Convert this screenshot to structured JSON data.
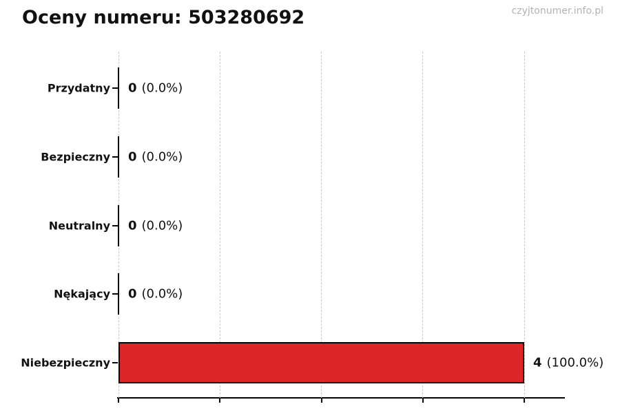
{
  "page": {
    "watermark": "czyjtonumer.info.pl"
  },
  "chart_data": {
    "type": "bar",
    "orientation": "horizontal",
    "title": "Oceny numeru: 503280692",
    "categories": [
      "Przydatny",
      "Bezpieczny",
      "Neutralny",
      "Nękający",
      "Niebezpieczny"
    ],
    "values": [
      0,
      0,
      0,
      0,
      4
    ],
    "percent_labels": [
      "(0.0%)",
      "(0.0%)",
      "(0.0%)",
      "(0.0%)",
      "(100.0%)"
    ],
    "value_label_format": "count (percent)",
    "x_ticks": [
      0,
      1,
      2,
      3,
      4
    ],
    "xlim": [
      0,
      4.4
    ],
    "x_tick_labels_visible": false,
    "grid": "vertical-dashed",
    "legend": "none",
    "bar_color": "#dc2627",
    "bar_border_color": "#000000",
    "zero_bar_color": "#000000"
  },
  "colors": {
    "background": "#ffffff",
    "title_text": "#111111",
    "watermark_text": "#b3b3b3",
    "gridline": "#c9c9c9",
    "axis": "#000000"
  }
}
